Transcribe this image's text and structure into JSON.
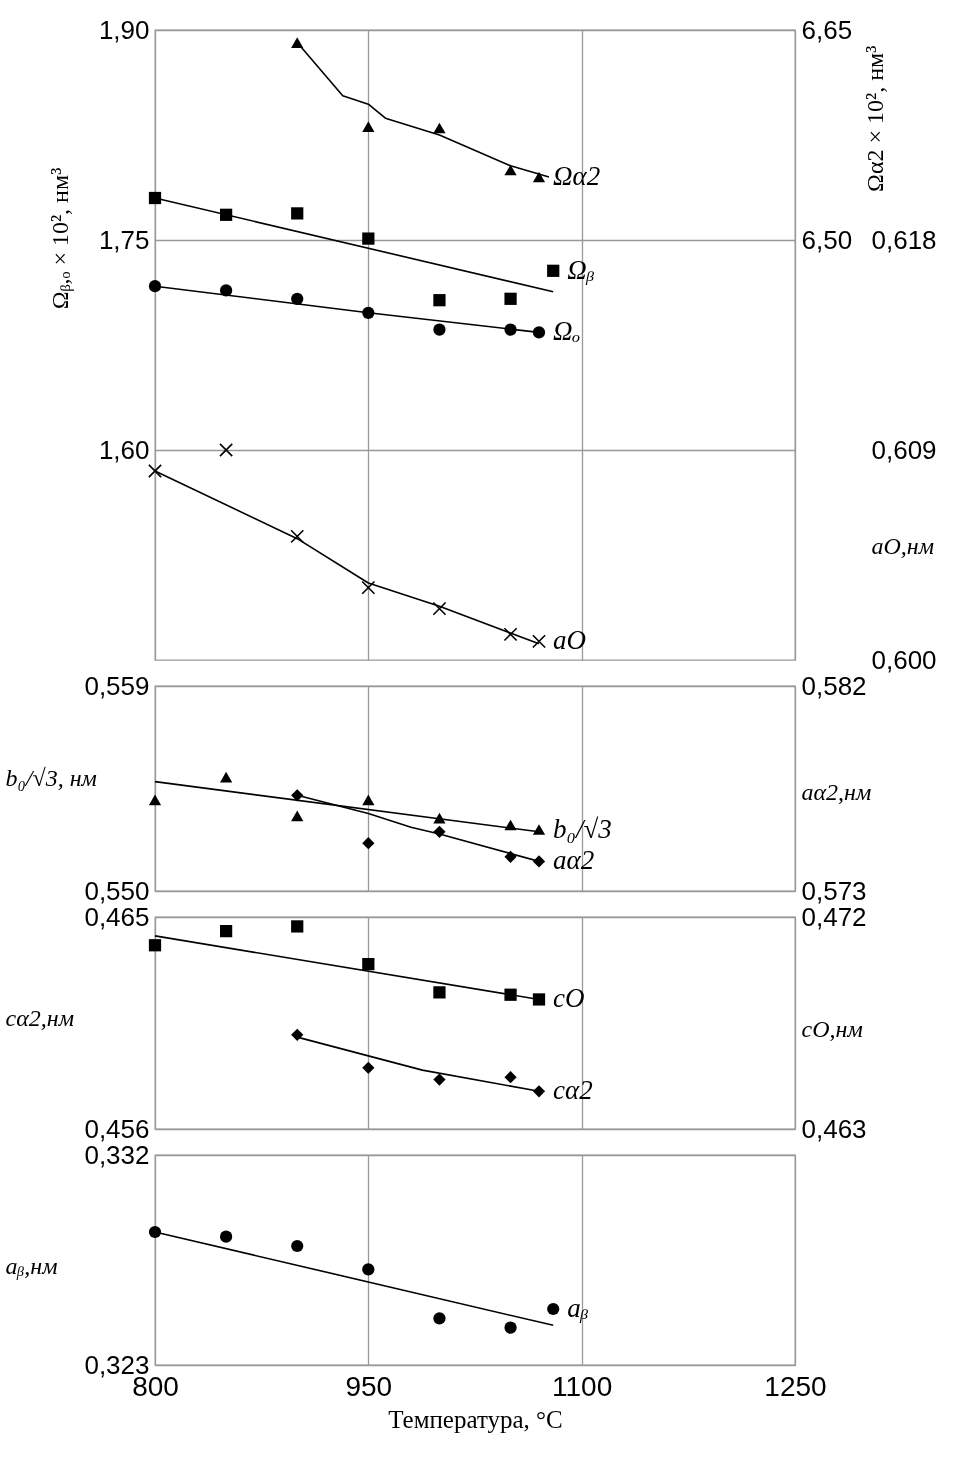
{
  "chart_data": [
    {
      "type": "scatter",
      "xlim": [
        800,
        1250
      ],
      "xticks": [
        800,
        950,
        1100,
        1250
      ],
      "tick_labels": "y",
      "grid": true,
      "ylabel": "Ωᵦ,ₒ × 10², нм³",
      "ylim": [
        1.45,
        1.9
      ],
      "yticks": [
        {
          "value": 1.6,
          "label": "1,60"
        },
        {
          "value": 1.75,
          "label": "1,75"
        },
        {
          "value": 1.9,
          "label": "1,90"
        }
      ],
      "y2label": "Ωα2 × 10², нм³",
      "y2lim": [
        6.2,
        6.65
      ],
      "y2ticks": [
        {
          "value": 6.5,
          "label": "6,50"
        },
        {
          "value": 6.65,
          "label": "6,65"
        }
      ],
      "y3label": "aO,нм",
      "y3lim": [
        0.6,
        0.627
      ],
      "y3ticks": [
        {
          "value": 0.6,
          "label": "0,600"
        },
        {
          "value": 0.609,
          "label": "0,609"
        },
        {
          "value": 0.618,
          "label": "0,618"
        }
      ],
      "series": [
        {
          "name": "Ωα2",
          "axis": "y2",
          "marker": "triangle",
          "color": "#000000",
          "x": [
            900,
            950,
            1000,
            1050,
            1070
          ],
          "values": [
            6.641,
            6.581,
            6.58,
            6.55,
            6.545
          ]
        },
        {
          "type": "line",
          "axis": "y2",
          "color": "#000000",
          "x": [
            900,
            932,
            950,
            962,
            1000,
            1050,
            1077
          ],
          "values": [
            6.641,
            6.603,
            6.597,
            6.587,
            6.575,
            6.553,
            6.545
          ]
        },
        {
          "name": "Ωᵦ",
          "axis": "y",
          "marker": "square",
          "color": "#000000",
          "x": [
            800,
            850,
            900,
            950,
            1000,
            1050,
            1080
          ],
          "values": [
            1.78,
            1.768,
            1.769,
            1.751,
            1.707,
            1.708,
            1.728
          ]
        },
        {
          "type": "line",
          "axis": "y",
          "color": "#000000",
          "x": [
            800,
            1080
          ],
          "values": [
            1.78,
            1.713
          ]
        },
        {
          "name": "Ωₒ",
          "axis": "y",
          "marker": "circle",
          "color": "#000000",
          "x": [
            800,
            850,
            900,
            950,
            1000,
            1050,
            1070
          ],
          "values": [
            1.717,
            1.714,
            1.708,
            1.698,
            1.686,
            1.686,
            1.684
          ]
        },
        {
          "type": "line",
          "axis": "y",
          "color": "#000000",
          "x": [
            800,
            950,
            1070
          ],
          "values": [
            1.717,
            1.698,
            1.684
          ]
        },
        {
          "name": "aO",
          "axis": "y3",
          "marker": "cross",
          "color": "#000000",
          "x": [
            800,
            850,
            900,
            950,
            1000,
            1050,
            1070
          ],
          "values": [
            0.6081,
            0.609,
            0.6053,
            0.6031,
            0.6022,
            0.6011,
            0.6008
          ]
        },
        {
          "type": "line",
          "axis": "y3",
          "color": "#000000",
          "x": [
            800,
            900,
            950,
            1000,
            1070
          ],
          "values": [
            0.6081,
            0.6052,
            0.6033,
            0.6023,
            0.6007
          ]
        }
      ]
    },
    {
      "type": "scatter",
      "xlim": [
        800,
        1250
      ],
      "xticks": [
        800,
        950,
        1100,
        1250
      ],
      "tick_labels": "y",
      "grid": true,
      "ylabel": "b₀/√3, нм",
      "ylim": [
        0.55,
        0.559
      ],
      "yticks": [
        {
          "value": 0.55,
          "label": "0,550"
        },
        {
          "value": 0.559,
          "label": "0,559"
        }
      ],
      "y2label": "aα2,нм",
      "y2lim": [
        0.573,
        0.582
      ],
      "y2ticks": [
        {
          "value": 0.573,
          "label": "0,573"
        },
        {
          "value": 0.582,
          "label": "0,582"
        }
      ],
      "series": [
        {
          "name": "b₀/√3",
          "axis": "y",
          "marker": "triangle",
          "color": "#000000",
          "x": [
            800,
            850,
            900,
            950,
            1000,
            1050,
            1070
          ],
          "values": [
            0.554,
            0.555,
            0.5533,
            0.554,
            0.5532,
            0.5529,
            0.5527
          ]
        },
        {
          "type": "line",
          "axis": "y",
          "color": "#000000",
          "x": [
            800,
            1070
          ],
          "values": [
            0.5548,
            0.5526
          ]
        },
        {
          "name": "aα2",
          "axis": "y2",
          "marker": "diamond",
          "color": "#000000",
          "x": [
            900,
            950,
            1000,
            1050,
            1070
          ],
          "values": [
            0.5772,
            0.5751,
            0.5756,
            0.5745,
            0.5743
          ]
        },
        {
          "type": "line",
          "axis": "y2",
          "color": "#000000",
          "x": [
            900,
            950,
            980,
            1000,
            1070
          ],
          "values": [
            0.5772,
            0.5764,
            0.5758,
            0.5755,
            0.5743
          ]
        }
      ]
    },
    {
      "type": "scatter",
      "xlim": [
        800,
        1250
      ],
      "xticks": [
        800,
        950,
        1100,
        1250
      ],
      "tick_labels": "y",
      "grid": true,
      "ylabel": "cα2,нм",
      "ylim": [
        0.456,
        0.465
      ],
      "yticks": [
        {
          "value": 0.456,
          "label": "0,456"
        },
        {
          "value": 0.465,
          "label": "0,465"
        }
      ],
      "y2label": "cO,нм",
      "y2lim": [
        0.463,
        0.472
      ],
      "y2ticks": [
        {
          "value": 0.463,
          "label": "0,463"
        },
        {
          "value": 0.472,
          "label": "0,472"
        }
      ],
      "series": [
        {
          "name": "cO",
          "axis": "y2",
          "marker": "square",
          "color": "#000000",
          "x": [
            800,
            850,
            900,
            950,
            1000,
            1050,
            1070
          ],
          "values": [
            0.4708,
            0.4714,
            0.4716,
            0.47,
            0.4688,
            0.4687,
            0.4685
          ]
        },
        {
          "type": "line",
          "axis": "y2",
          "color": "#000000",
          "x": [
            800,
            1070
          ],
          "values": [
            0.4712,
            0.4685
          ]
        },
        {
          "name": "cα2",
          "axis": "y",
          "marker": "diamond",
          "color": "#000000",
          "x": [
            900,
            950,
            1000,
            1050,
            1070
          ],
          "values": [
            0.46,
            0.4586,
            0.4581,
            0.4582,
            0.4576
          ]
        },
        {
          "type": "line",
          "axis": "y",
          "color": "#000000",
          "x": [
            900,
            988,
            1070
          ],
          "values": [
            0.4599,
            0.4585,
            0.4576
          ]
        }
      ]
    },
    {
      "type": "scatter",
      "xlim": [
        800,
        1250
      ],
      "xticks": [
        800,
        950,
        1100,
        1250
      ],
      "grid": true,
      "xlabel": "Температура, °C",
      "ylabel": "aᵦ,нм",
      "ylim": [
        0.323,
        0.332
      ],
      "yticks": [
        {
          "value": 0.323,
          "label": "0,323"
        },
        {
          "value": 0.332,
          "label": "0,332"
        }
      ],
      "series": [
        {
          "name": "aᵦ",
          "axis": "y",
          "marker": "circle",
          "color": "#000000",
          "x": [
            800,
            850,
            900,
            950,
            1000,
            1050,
            1080
          ],
          "values": [
            0.3287,
            0.3285,
            0.3281,
            0.3271,
            0.325,
            0.3246,
            0.3254
          ]
        },
        {
          "type": "line",
          "axis": "y",
          "color": "#000000",
          "x": [
            800,
            1080
          ],
          "values": [
            0.3287,
            0.3247
          ]
        }
      ]
    }
  ]
}
